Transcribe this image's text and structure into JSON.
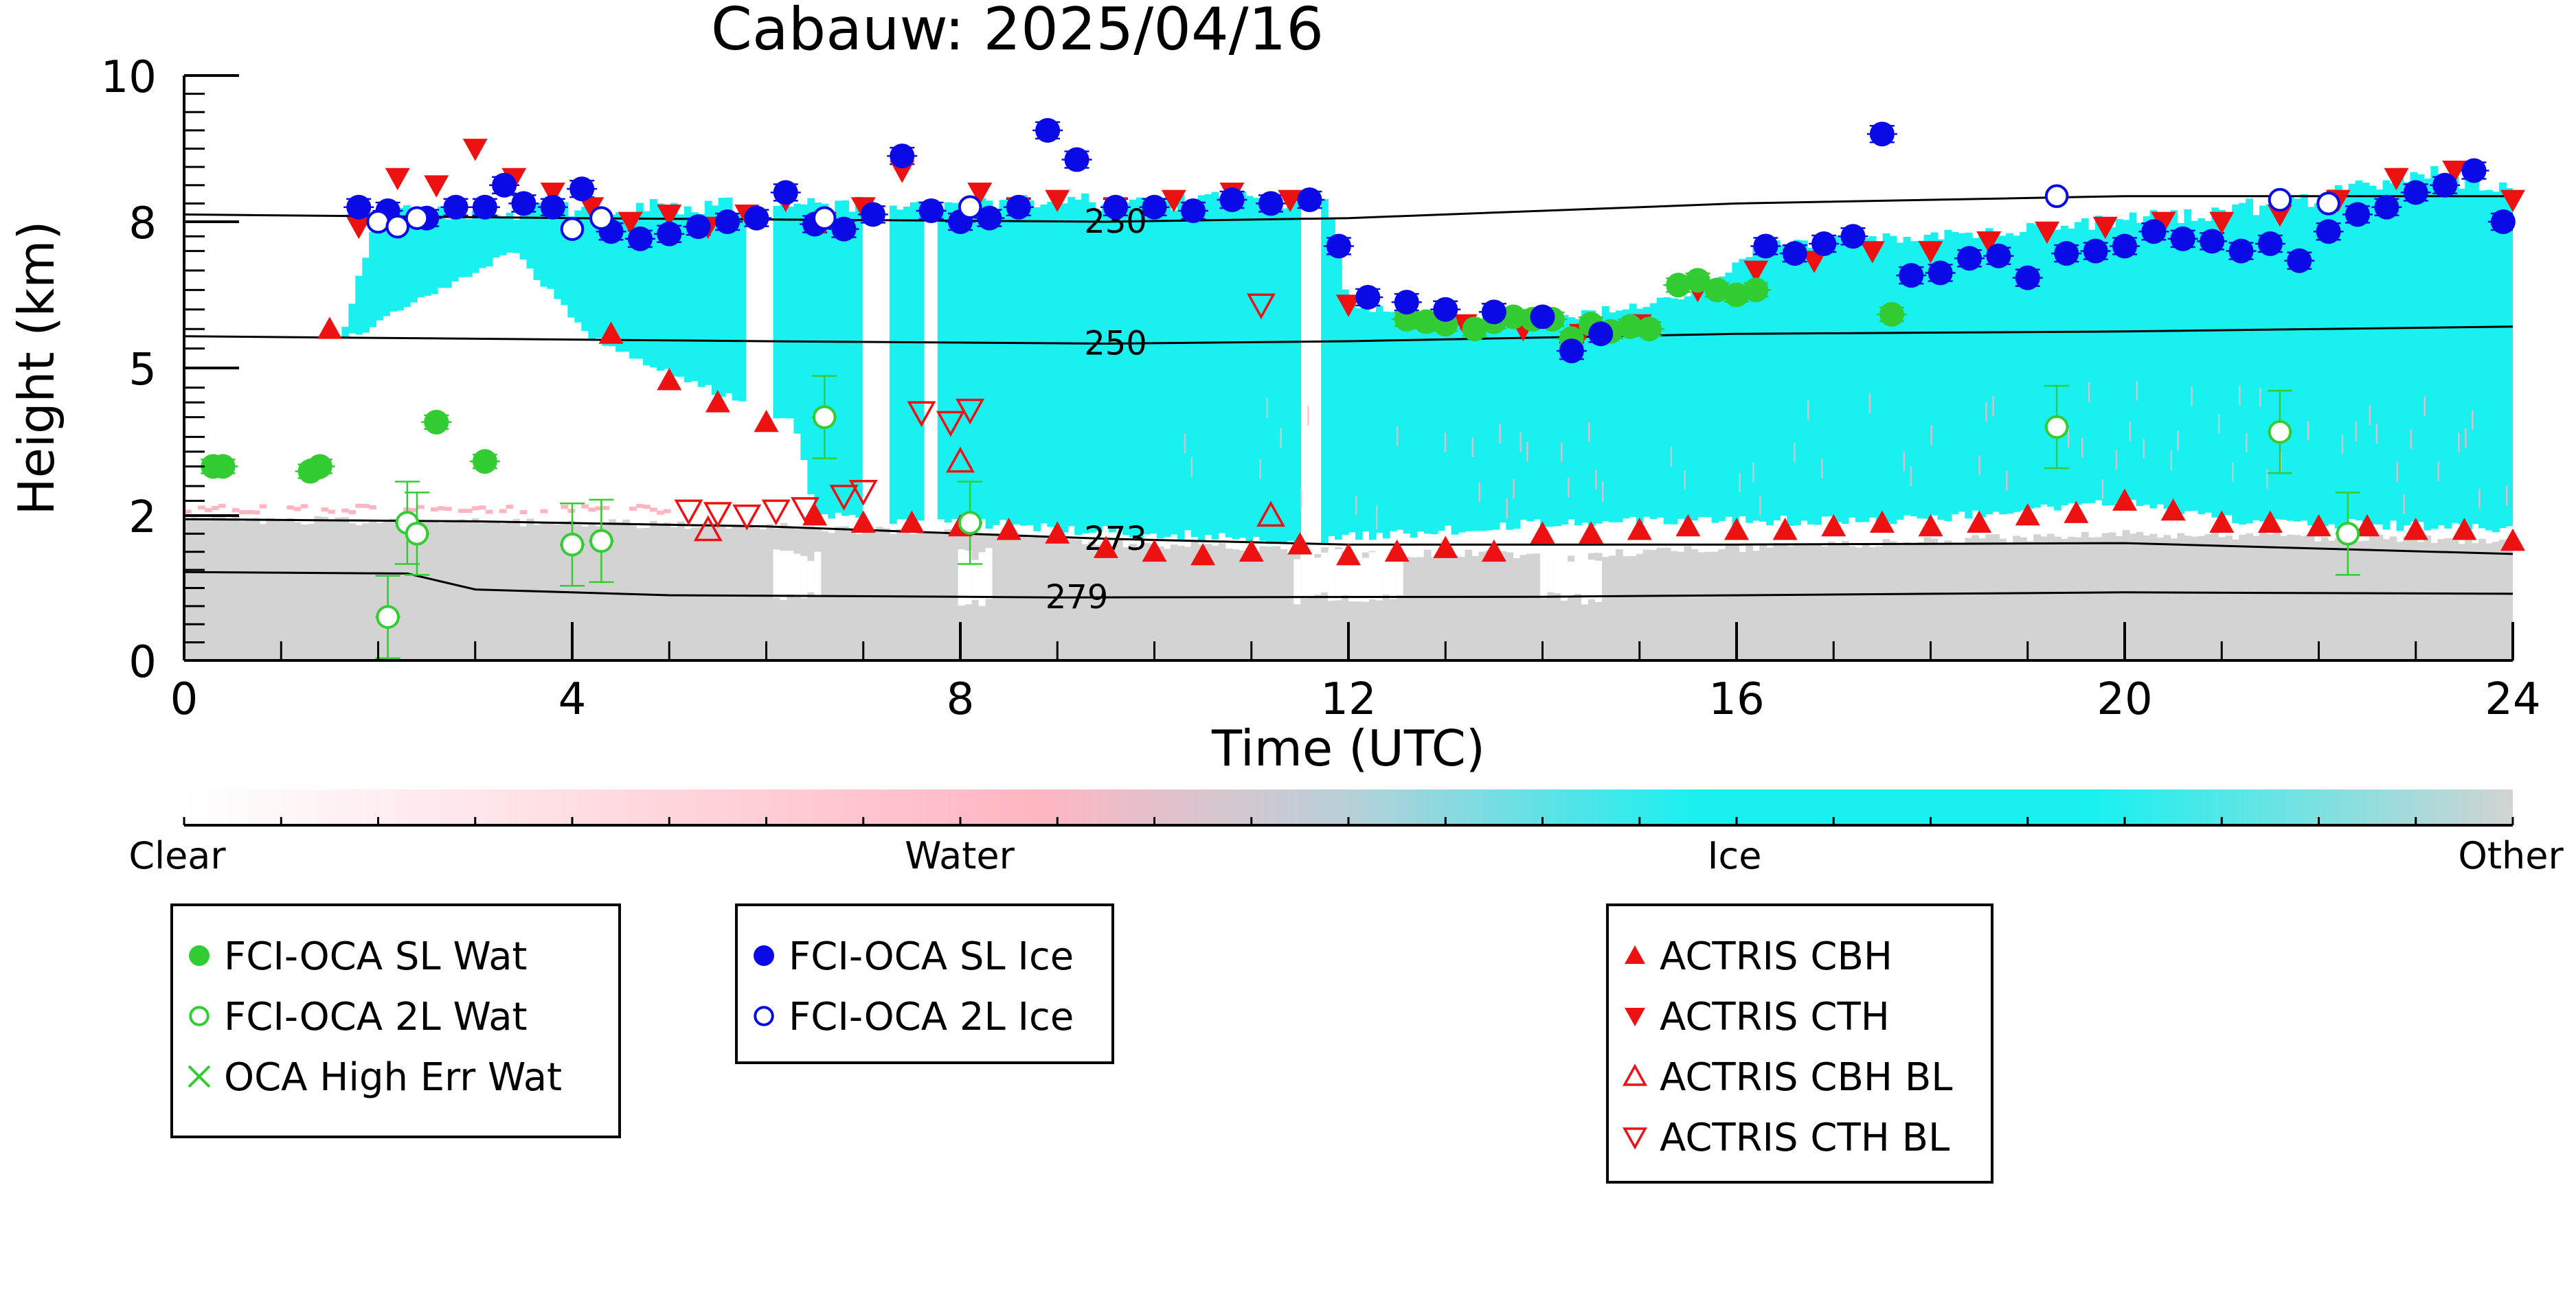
{
  "chart_data": {
    "type": "scatter",
    "title": "Cabauw: 2025/04/16",
    "xlabel": "Time (UTC)",
    "ylabel": "Height (km)",
    "xlim": [
      0,
      24
    ],
    "ylim": [
      0,
      10
    ],
    "xticks": [
      0,
      4,
      8,
      12,
      16,
      20,
      24
    ],
    "yticks": [
      0,
      2,
      5,
      8,
      10
    ],
    "yscale": "reciprocal-like",
    "grid": false,
    "background_classification": {
      "colorbar_labels": [
        "Clear",
        "Water",
        "Ice",
        "Other"
      ],
      "colors": {
        "Clear": "#ffffff",
        "Water": "#ffb6c1",
        "Ice": "#19f0f0",
        "Other": "#d3d3d3"
      }
    },
    "contours": [
      {
        "label": "230",
        "points": [
          [
            0,
            8.1
          ],
          [
            4,
            8.05
          ],
          [
            9.5,
            8.0
          ],
          [
            12,
            8.05
          ],
          [
            16,
            8.25
          ],
          [
            20,
            8.35
          ],
          [
            24,
            8.35
          ]
        ]
      },
      {
        "label": "250",
        "points": [
          [
            0,
            5.65
          ],
          [
            6,
            5.55
          ],
          [
            9.5,
            5.5
          ],
          [
            12,
            5.55
          ],
          [
            16,
            5.7
          ],
          [
            20,
            5.75
          ],
          [
            24,
            5.85
          ]
        ]
      },
      {
        "label": "273",
        "points": [
          [
            0,
            1.95
          ],
          [
            3,
            1.92
          ],
          [
            6,
            1.85
          ],
          [
            9.5,
            1.68
          ],
          [
            12,
            1.6
          ],
          [
            16,
            1.6
          ],
          [
            20,
            1.62
          ],
          [
            24,
            1.47
          ]
        ]
      },
      {
        "label": "279",
        "points": [
          [
            0,
            1.22
          ],
          [
            2.3,
            1.2
          ],
          [
            3,
            0.98
          ],
          [
            5,
            0.9
          ],
          [
            8,
            0.88
          ],
          [
            9,
            0.87
          ],
          [
            14,
            0.88
          ],
          [
            18,
            0.92
          ],
          [
            20,
            0.94
          ],
          [
            24,
            0.92
          ]
        ]
      }
    ],
    "series": [
      {
        "name": "FCI-OCA SL Wat",
        "color": "#33cc33",
        "marker": "filled-circle",
        "x": [
          0.3,
          0.4,
          1.3,
          1.4,
          2.6,
          3.1,
          12.6,
          12.8,
          13.0,
          13.3,
          13.5,
          13.7,
          13.9,
          14.1,
          14.3,
          14.5,
          14.7,
          14.9,
          15.1,
          15.4,
          15.6,
          15.8,
          16.0,
          16.2,
          17.6
        ],
        "y": [
          3.0,
          3.0,
          2.9,
          3.0,
          3.9,
          3.1,
          6.0,
          5.95,
          5.9,
          5.8,
          5.95,
          6.05,
          6.0,
          6.0,
          5.6,
          5.9,
          5.75,
          5.85,
          5.8,
          6.7,
          6.8,
          6.6,
          6.5,
          6.6,
          6.1
        ]
      },
      {
        "name": "FCI-OCA 2L Wat",
        "color": "#33cc33",
        "marker": "open-circle",
        "x": [
          2.1,
          2.3,
          2.4,
          4.0,
          4.3,
          6.6,
          8.1,
          19.3,
          21.6,
          22.3
        ],
        "y": [
          0.6,
          1.9,
          1.75,
          1.6,
          1.65,
          4.0,
          1.9,
          3.8,
          3.7,
          1.75
        ]
      },
      {
        "name": "OCA High Err Wat",
        "color": "#33cc33",
        "marker": "x",
        "x": [],
        "y": []
      },
      {
        "name": "FCI-OCA SL Ice",
        "color": "#0a0ae6",
        "marker": "filled-circle",
        "x": [
          1.8,
          2.1,
          2.5,
          2.8,
          3.1,
          3.3,
          3.5,
          3.8,
          4.1,
          4.4,
          4.7,
          5.0,
          5.3,
          5.6,
          5.9,
          6.2,
          6.5,
          6.8,
          7.1,
          7.4,
          7.7,
          8.0,
          8.3,
          8.6,
          8.9,
          9.2,
          9.6,
          10.0,
          10.4,
          10.8,
          11.2,
          11.6,
          11.9,
          12.2,
          12.6,
          13.0,
          13.5,
          14.0,
          14.3,
          14.6,
          16.3,
          16.6,
          16.9,
          17.2,
          17.5,
          17.8,
          18.1,
          18.4,
          18.7,
          19.0,
          19.4,
          19.7,
          20.0,
          20.3,
          20.6,
          20.9,
          21.2,
          21.5,
          21.8,
          22.1,
          22.4,
          22.7,
          23.0,
          23.3,
          23.6,
          23.9
        ],
        "y": [
          8.2,
          8.15,
          8.05,
          8.2,
          8.2,
          8.5,
          8.25,
          8.2,
          8.45,
          7.8,
          7.65,
          7.75,
          7.9,
          8.0,
          8.05,
          8.4,
          7.95,
          7.85,
          8.1,
          8.9,
          8.15,
          8.0,
          8.05,
          8.2,
          9.25,
          8.85,
          8.2,
          8.2,
          8.15,
          8.3,
          8.25,
          8.3,
          7.5,
          6.45,
          6.35,
          6.2,
          6.15,
          6.05,
          5.35,
          5.7,
          7.5,
          7.35,
          7.55,
          7.7,
          9.2,
          6.9,
          6.95,
          7.25,
          7.3,
          6.85,
          7.35,
          7.4,
          7.5,
          7.8,
          7.65,
          7.6,
          7.4,
          7.55,
          7.2,
          7.8,
          8.1,
          8.2,
          8.4,
          8.5,
          8.7,
          8.0
        ]
      },
      {
        "name": "FCI-OCA 2L Ice",
        "color": "#0a0ae6",
        "marker": "open-circle",
        "x": [
          2.0,
          2.2,
          2.4,
          4.0,
          4.3,
          6.6,
          8.1,
          19.3,
          21.6,
          22.1
        ],
        "y": [
          8.0,
          7.9,
          8.05,
          7.85,
          8.05,
          8.05,
          8.2,
          8.35,
          8.3,
          8.25
        ]
      },
      {
        "name": "ACTRIS CBH",
        "color": "#ee1111",
        "marker": "triangle-up",
        "x": [
          1.5,
          4.4,
          5.0,
          5.5,
          6.0,
          6.5,
          7.0,
          7.5,
          8.0,
          8.5,
          9.0,
          9.5,
          10.0,
          10.5,
          11.0,
          11.5,
          12.0,
          12.5,
          13.0,
          13.5,
          14.0,
          14.5,
          15.0,
          15.5,
          16.0,
          16.5,
          17.0,
          17.5,
          18.0,
          18.5,
          19.0,
          19.5,
          20.0,
          20.5,
          21.0,
          21.5,
          22.0,
          22.5,
          23.0,
          23.5,
          24.0
        ],
        "y": [
          5.8,
          5.7,
          4.75,
          4.3,
          3.9,
          2.0,
          1.9,
          1.9,
          1.85,
          1.8,
          1.75,
          1.55,
          1.5,
          1.45,
          1.5,
          1.6,
          1.45,
          1.5,
          1.55,
          1.5,
          1.75,
          1.75,
          1.8,
          1.85,
          1.8,
          1.8,
          1.85,
          1.9,
          1.85,
          1.9,
          2.0,
          2.05,
          2.3,
          2.1,
          1.9,
          1.9,
          1.85,
          1.85,
          1.8,
          1.8,
          1.65
        ]
      },
      {
        "name": "ACTRIS CTH",
        "color": "#ee1111",
        "marker": "triangle-down",
        "x": [
          1.8,
          2.2,
          2.6,
          3.0,
          3.4,
          3.8,
          4.2,
          4.6,
          5.0,
          5.4,
          5.8,
          6.2,
          6.6,
          7.0,
          7.4,
          8.2,
          8.6,
          9.0,
          9.6,
          10.2,
          10.8,
          11.4,
          12.0,
          12.6,
          13.2,
          13.8,
          14.4,
          15.0,
          15.6,
          16.2,
          16.8,
          17.4,
          18.0,
          18.6,
          19.2,
          19.8,
          20.4,
          21.0,
          21.6,
          22.2,
          22.8,
          23.4,
          24.0
        ],
        "y": [
          7.9,
          8.6,
          8.5,
          9.0,
          8.6,
          8.4,
          8.2,
          8.0,
          8.1,
          7.9,
          8.1,
          8.3,
          8.0,
          8.2,
          8.7,
          8.4,
          8.2,
          8.3,
          8.2,
          8.3,
          8.4,
          8.3,
          6.3,
          6.1,
          5.9,
          5.8,
          5.7,
          5.9,
          6.6,
          7.0,
          7.2,
          7.4,
          7.4,
          7.6,
          7.8,
          7.9,
          8.0,
          8.0,
          8.1,
          8.3,
          8.6,
          8.7,
          8.3
        ]
      },
      {
        "name": "ACTRIS CBH BL",
        "color": "#ee1111",
        "marker": "open-triangle-up",
        "x": [
          5.4,
          8.0,
          11.2
        ],
        "y": [
          1.8,
          3.1,
          2.0
        ]
      },
      {
        "name": "ACTRIS CTH BL",
        "color": "#ee1111",
        "marker": "open-triangle-down",
        "x": [
          5.2,
          5.5,
          5.8,
          6.1,
          6.4,
          6.8,
          7.0,
          7.6,
          7.9,
          8.1,
          11.1
        ],
        "y": [
          2.1,
          2.05,
          2.0,
          2.1,
          2.15,
          2.4,
          2.5,
          4.1,
          3.9,
          4.15,
          6.3
        ]
      }
    ],
    "legend": {
      "placement": "below",
      "groups": [
        [
          "FCI-OCA SL Wat",
          "FCI-OCA 2L Wat",
          "OCA High Err Wat"
        ],
        [
          "FCI-OCA SL Ice",
          "FCI-OCA 2L Ice"
        ],
        [
          "ACTRIS CBH",
          "ACTRIS CTH",
          "ACTRIS CBH BL",
          "ACTRIS CTH BL"
        ]
      ]
    }
  }
}
